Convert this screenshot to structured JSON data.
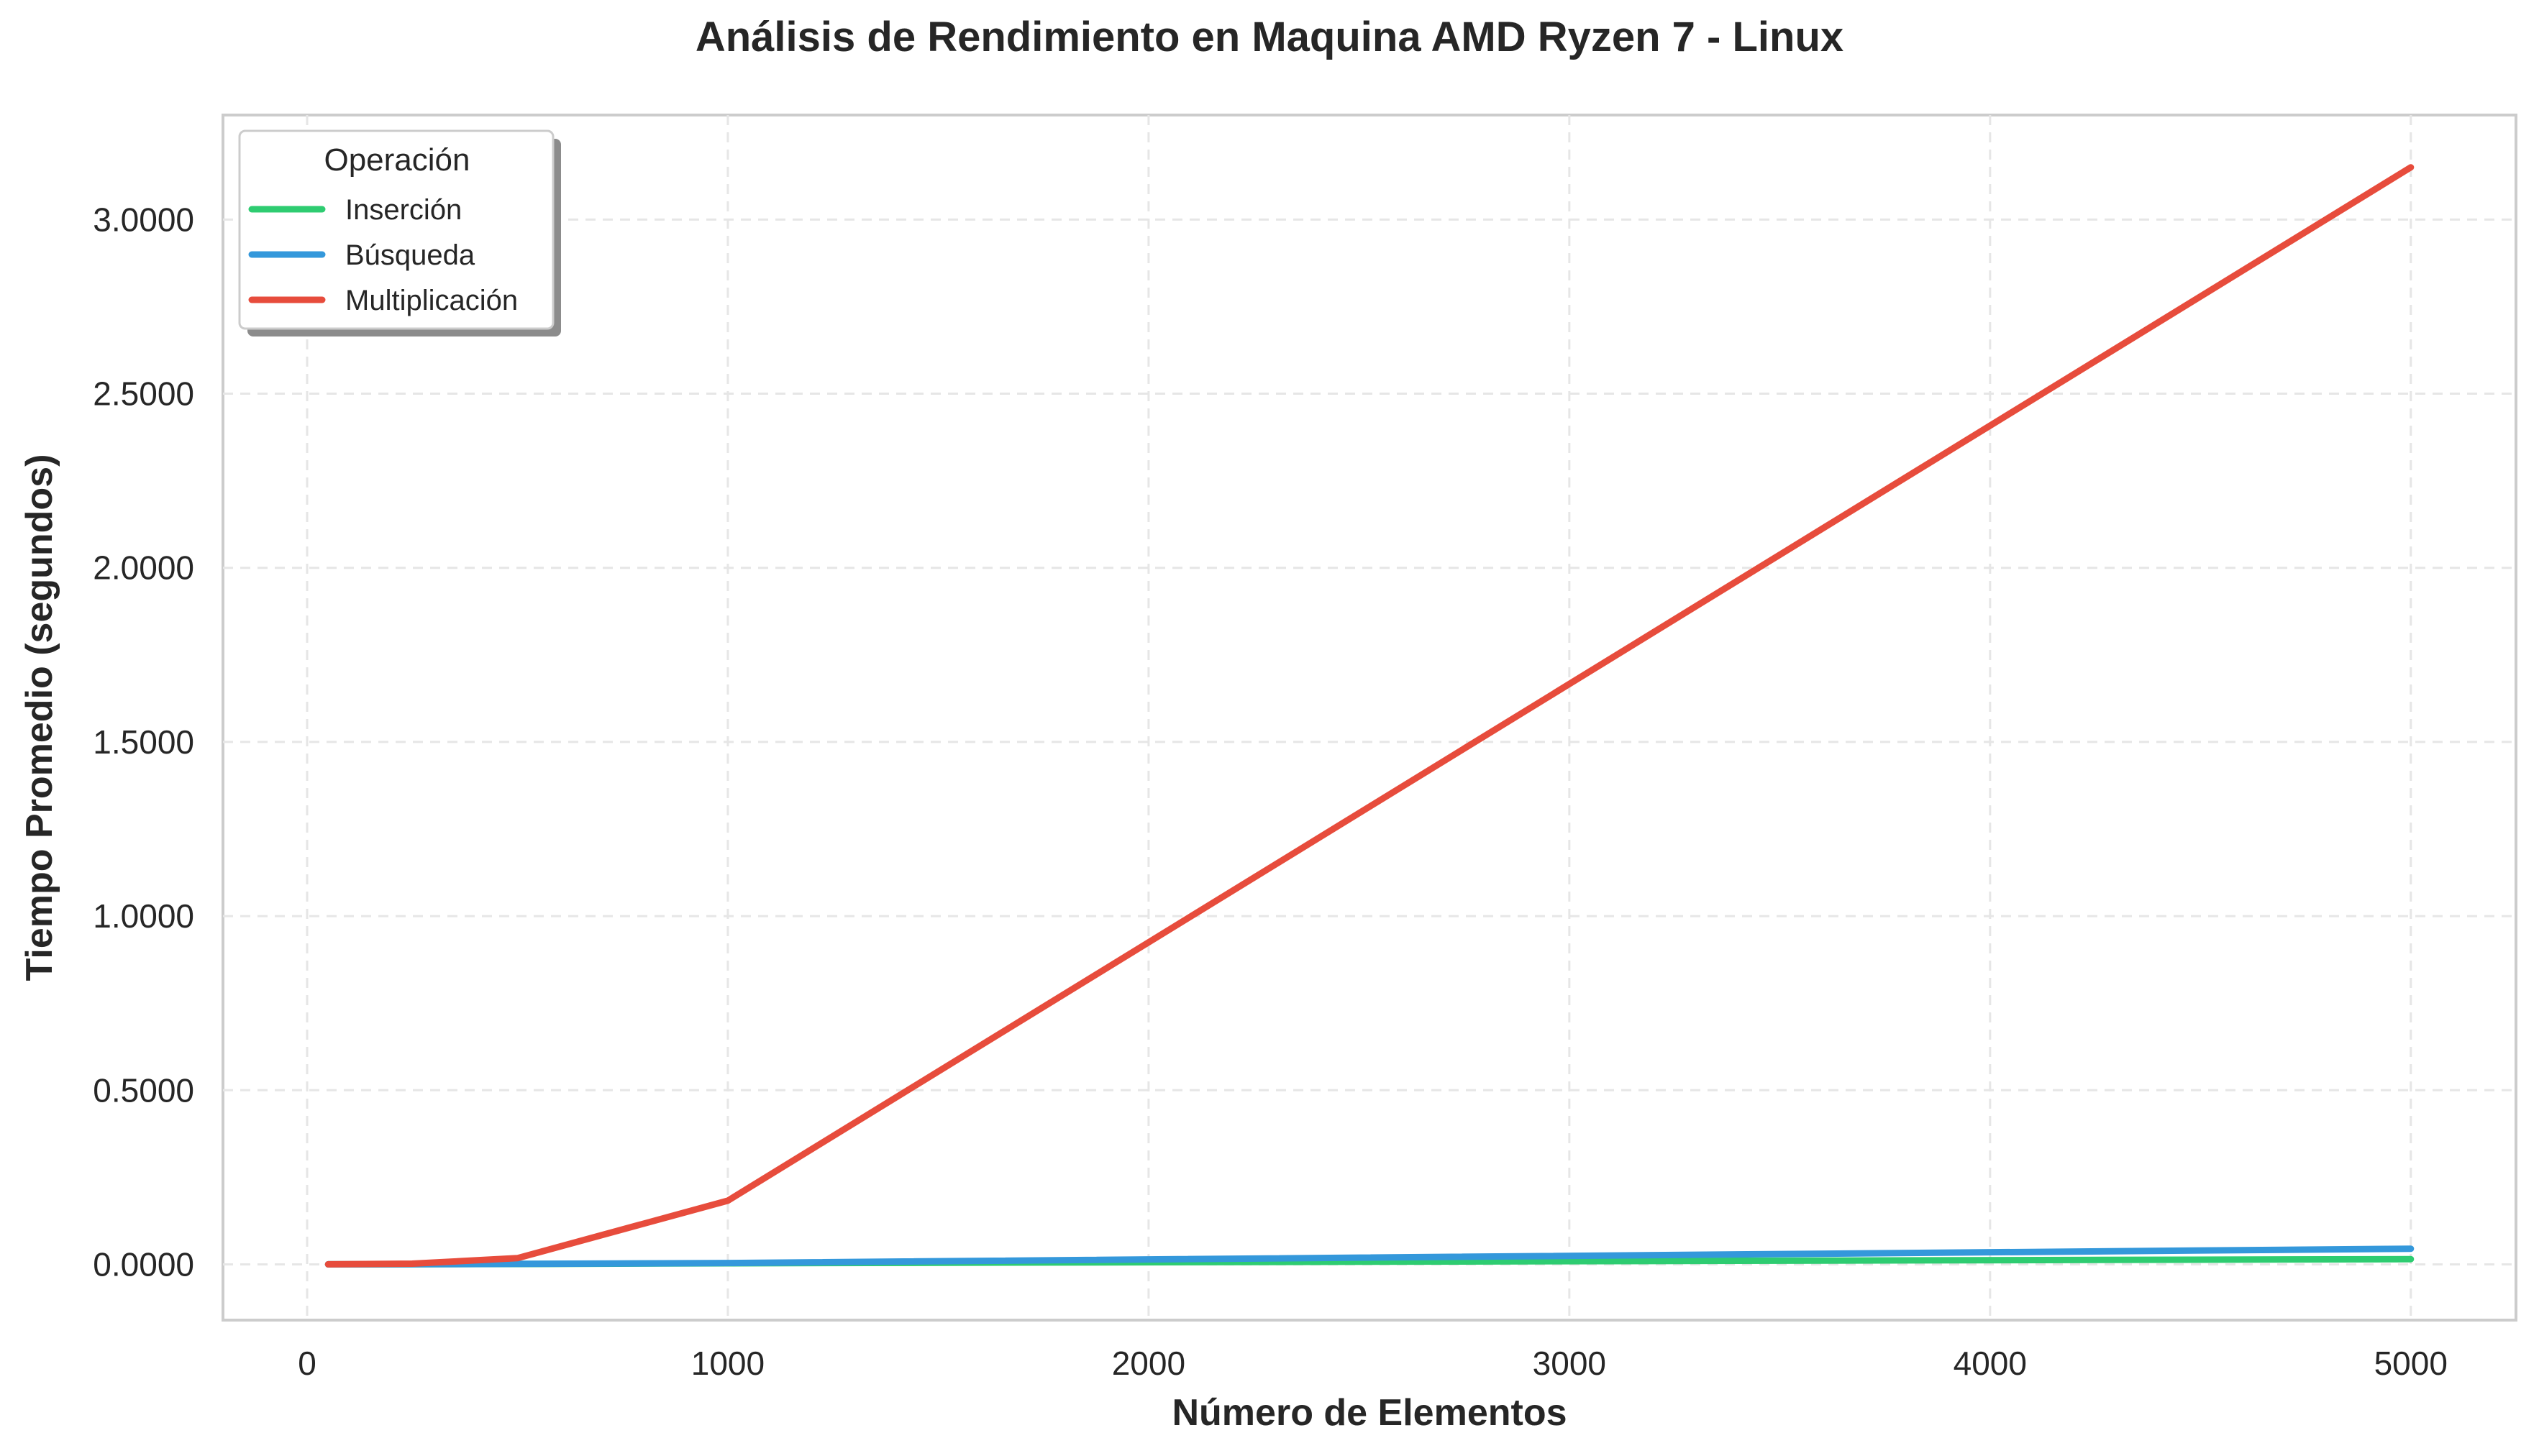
{
  "chart_data": {
    "type": "line",
    "title": "Análisis de Rendimiento en Maquina AMD Ryzen 7 - Linux",
    "xlabel": "Número de Elementos",
    "ylabel": "Tiempo Promedio (segundos)",
    "xlim": [
      -200,
      5250
    ],
    "ylim": [
      -0.16,
      3.3
    ],
    "xticks": [
      0,
      1000,
      2000,
      3000,
      4000,
      5000
    ],
    "xtick_labels": [
      "0",
      "1000",
      "2000",
      "3000",
      "4000",
      "5000"
    ],
    "yticks": [
      0,
      0.5,
      1.0,
      1.5,
      2.0,
      2.5,
      3.0
    ],
    "ytick_labels": [
      "0.0000",
      "0.5000",
      "1.0000",
      "1.5000",
      "2.0000",
      "2.5000",
      "3.0000"
    ],
    "grid": true,
    "legend": {
      "title": "Operación",
      "placement": "upper-left"
    },
    "x": [
      50,
      250,
      500,
      1000,
      5000
    ],
    "series": [
      {
        "name": "Inserción",
        "color": "#2ecc71",
        "values": [
          0.0001,
          0.0004,
          0.001,
          0.003,
          0.015
        ]
      },
      {
        "name": "Búsqueda",
        "color": "#3498db",
        "values": [
          0.0001,
          0.0005,
          0.0015,
          0.004,
          0.045
        ]
      },
      {
        "name": "Multiplicación",
        "color": "#e74c3c",
        "values": [
          0.0002,
          0.002,
          0.018,
          0.183,
          3.15
        ]
      }
    ]
  }
}
